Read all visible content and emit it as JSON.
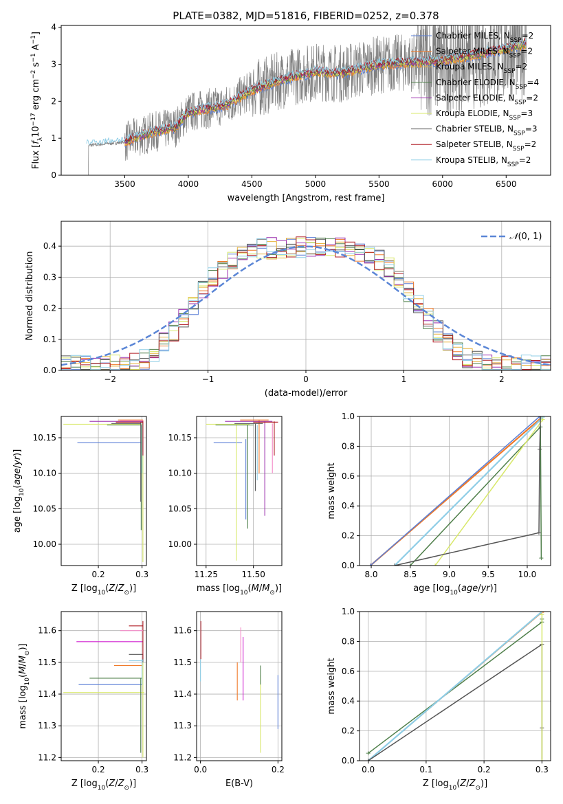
{
  "title": "PLATE=0382, MJD=51816, FIBERID=0252, z=0.378",
  "colors": {
    "chabrier_miles": "#5b7fd6",
    "salpeter_miles": "#f07a2a",
    "kroupa_miles": "#e8b23d",
    "chabrier_elodie": "#4f7f4a",
    "salpeter_elodie": "#9b2fae",
    "kroupa_elodie": "#d8e86a",
    "chabrier_stelib": "#555555",
    "salpeter_stelib": "#b01c24",
    "kroupa_stelib": "#8ecde6",
    "data": "#808080",
    "normal": "#5b86d6",
    "grid": "#b0b0b0",
    "magenta": "#d020d0",
    "pink": "#f48ac8"
  },
  "chart_data": [
    {
      "id": "spectrum",
      "type": "line",
      "xlabel": "wavelength [Angstrom, rest frame]",
      "ylabel": "Flux [f_λ 10^-17 erg cm^-2 s^-1 A^-1]",
      "xlim": [
        3000,
        6850
      ],
      "ylim": [
        0,
        4.05
      ],
      "xticks": [
        3500,
        4000,
        4500,
        5000,
        5500,
        6000,
        6500
      ],
      "yticks": [
        0,
        1,
        2,
        3,
        4
      ],
      "grid": false,
      "legend_position": "top-right",
      "model_continuum": [
        [
          3200,
          0.8
        ],
        [
          3500,
          0.9
        ],
        [
          3700,
          1.15
        ],
        [
          3900,
          1.3
        ],
        [
          4000,
          1.7
        ],
        [
          4300,
          1.9
        ],
        [
          4500,
          2.3
        ],
        [
          4800,
          2.65
        ],
        [
          5000,
          2.8
        ],
        [
          5200,
          2.75
        ],
        [
          5500,
          3.0
        ],
        [
          6000,
          3.1
        ],
        [
          6400,
          3.35
        ],
        [
          6650,
          3.55
        ]
      ],
      "legend": [
        {
          "label": "Chabrier MILES, N",
          "sub": "SSP",
          "val": "=2"
        },
        {
          "label": "Salpeter MILES, N",
          "sub": "SSP",
          "val": "=2"
        },
        {
          "label": "Kroupa MILES, N",
          "sub": "SSP",
          "val": "=2"
        },
        {
          "label": "Chabrier ELODIE, N",
          "sub": "SSP",
          "val": "=4"
        },
        {
          "label": "Salpeter ELODIE, N",
          "sub": "SSP",
          "val": "=2"
        },
        {
          "label": "Kroupa ELODIE, N",
          "sub": "SSP",
          "val": "=3"
        },
        {
          "label": "Chabrier STELIB, N",
          "sub": "SSP",
          "val": "=3"
        },
        {
          "label": "Salpeter STELIB, N",
          "sub": "SSP",
          "val": "=2"
        },
        {
          "label": "Kroupa STELIB, N",
          "sub": "SSP",
          "val": "=2"
        }
      ]
    },
    {
      "id": "residuals",
      "type": "line",
      "xlabel": "(data-model)/error",
      "ylabel": "Normed distribution",
      "xlim": [
        -2.5,
        2.5
      ],
      "ylim": [
        0,
        0.48
      ],
      "xticks": [
        -2,
        -1,
        0,
        1,
        2
      ],
      "yticks": [
        0.0,
        0.1,
        0.2,
        0.3,
        0.4
      ],
      "grid": true,
      "legend_position": "top-right",
      "legend": "N(0, 1)",
      "normal": {
        "mean": 0,
        "sigma": 1
      }
    },
    {
      "id": "age_vs_Z",
      "type": "scatter",
      "xlabel": "Z [log10(Z/Z⊙)]",
      "ylabel": "age  [log10(age/yr)]",
      "xlim": [
        0.115,
        0.31
      ],
      "ylim": [
        9.97,
        10.18
      ],
      "xticks": [
        0.2,
        0.3
      ],
      "yticks": [
        10.0,
        10.05,
        10.1,
        10.15
      ],
      "grid": true
    },
    {
      "id": "age_vs_mass",
      "type": "scatter",
      "xlabel": "mass [log10(M/M⊙)]",
      "xlim": [
        11.2,
        11.65
      ],
      "ylim": [
        9.97,
        10.18
      ],
      "xticks": [
        11.25,
        11.5
      ],
      "yticks": [
        10.0,
        10.05,
        10.1,
        10.15
      ],
      "grid": true
    },
    {
      "id": "weight_vs_age",
      "type": "line",
      "xlabel": "age  [log10(age/yr)]",
      "ylabel": "mass weight",
      "xlim": [
        7.85,
        10.3
      ],
      "ylim": [
        0,
        1
      ],
      "xticks": [
        8.0,
        8.5,
        9.0,
        9.5,
        10.0
      ],
      "yticks": [
        0.0,
        0.2,
        0.4,
        0.6,
        0.8,
        1.0
      ],
      "grid": true
    },
    {
      "id": "mass_vs_Z",
      "type": "scatter",
      "xlabel": "Z [log10(Z/Z⊙)]",
      "ylabel": "mass [log10(M/M⊙)]",
      "xlim": [
        0.115,
        0.31
      ],
      "ylim": [
        11.19,
        11.66
      ],
      "xticks": [
        0.2,
        0.3
      ],
      "yticks": [
        11.2,
        11.3,
        11.4,
        11.5,
        11.6
      ],
      "grid": true
    },
    {
      "id": "mass_vs_ebv",
      "type": "scatter",
      "xlabel": "E(B-V)",
      "xlim": [
        -0.01,
        0.21
      ],
      "ylim": [
        11.19,
        11.66
      ],
      "xticks": [
        0.0,
        0.2
      ],
      "yticks": [
        11.2,
        11.3,
        11.4,
        11.5,
        11.6
      ],
      "grid": true
    },
    {
      "id": "weight_vs_Z",
      "type": "line",
      "xlabel": "Z [log10(Z/Z⊙)]",
      "ylabel": "mass weight",
      "xlim": [
        -0.015,
        0.315
      ],
      "ylim": [
        0,
        1
      ],
      "xticks": [
        0.0,
        0.1,
        0.2,
        0.3
      ],
      "yticks": [
        0.0,
        0.2,
        0.4,
        0.6,
        0.8,
        1.0
      ],
      "grid": true
    }
  ]
}
